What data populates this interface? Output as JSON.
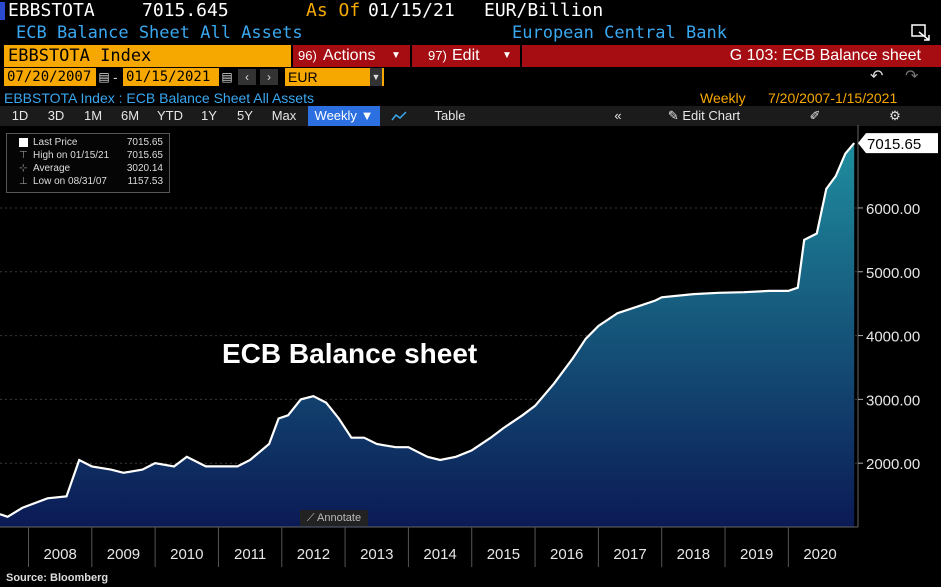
{
  "header": {
    "ticker": "EBBSTOTA",
    "price": "7015.645",
    "asof_label": "As Of",
    "asof_date": "01/15/21",
    "units": "EUR/Billion",
    "description": "ECB Balance Sheet All Assets",
    "source_name": "European Central Bank",
    "security": "EBBSTOTA Index",
    "actions_num": "96)",
    "actions_label": "Actions",
    "edit_num": "97)",
    "edit_label": "Edit",
    "graph_title": "G 103: ECB Balance sheet",
    "start_date": "07/20/2007",
    "end_date": "01/15/2021",
    "currency": "EUR",
    "subtitle": "EBBSTOTA Index : ECB Balance Sheet All Assets",
    "frequency_label": "Weekly",
    "range_label": "7/20/2007-1/15/2021"
  },
  "toolbar": {
    "periods": [
      "1D",
      "3D",
      "1M",
      "6M",
      "YTD",
      "1Y",
      "5Y",
      "Max"
    ],
    "frequency": "Weekly",
    "table_label": "Table",
    "edit_chart_label": "Edit Chart"
  },
  "legend": {
    "last_price_label": "Last Price",
    "last_price_value": "7015.65",
    "high_label": "High on 01/15/21",
    "high_value": "7015.65",
    "average_label": "Average",
    "average_value": "3020.14",
    "low_label": "Low on 08/31/07",
    "low_value": "1157.53"
  },
  "annotate_label": "Annotate",
  "source": "Source: Bloomberg",
  "colors": {
    "accent_orange": "#f7a800",
    "button_red": "#a50d12",
    "header_blue": "#3aa8f0",
    "area_top": "#1f8d9e",
    "area_bottom": "#0b1a55"
  },
  "chart_data": {
    "type": "area",
    "title": "ECB Balance sheet",
    "ylabel": "EUR/Billion",
    "ylim": [
      1000,
      7300
    ],
    "yticks": [
      "2000.00",
      "3000.00",
      "4000.00",
      "5000.00",
      "6000.00"
    ],
    "x_ticks": [
      "2008",
      "2009",
      "2010",
      "2011",
      "2012",
      "2013",
      "2014",
      "2015",
      "2016",
      "2017",
      "2018",
      "2019",
      "2020"
    ],
    "last_value_label": "7015.65",
    "series": [
      {
        "x": [
          2007.55,
          2007.67,
          2007.9,
          2008.3,
          2008.6,
          2008.8,
          2009.0,
          2009.3,
          2009.5,
          2009.8,
          2010.0,
          2010.3,
          2010.5,
          2010.8,
          2011.0,
          2011.3,
          2011.5,
          2011.8,
          2011.95,
          2012.1,
          2012.3,
          2012.5,
          2012.7,
          2012.9,
          2013.1,
          2013.3,
          2013.5,
          2013.8,
          2014.0,
          2014.3,
          2014.5,
          2014.75,
          2015.0,
          2015.3,
          2015.5,
          2015.8,
          2016.0,
          2016.3,
          2016.6,
          2016.8,
          2017.0,
          2017.3,
          2017.6,
          2017.9,
          2018.0,
          2018.5,
          2018.9,
          2019.3,
          2019.7,
          2020.0,
          2020.15,
          2020.25,
          2020.45,
          2020.6,
          2020.75,
          2020.9,
          2021.04
        ],
        "values": [
          1200,
          1160,
          1300,
          1450,
          1480,
          2050,
          1950,
          1900,
          1850,
          1900,
          2000,
          1950,
          2100,
          1950,
          1950,
          1950,
          2050,
          2300,
          2700,
          2750,
          3000,
          3050,
          2950,
          2700,
          2400,
          2400,
          2300,
          2250,
          2250,
          2100,
          2050,
          2100,
          2200,
          2400,
          2550,
          2750,
          2900,
          3250,
          3650,
          3950,
          4150,
          4350,
          4450,
          4550,
          4600,
          4650,
          4670,
          4680,
          4700,
          4700,
          4750,
          5500,
          5600,
          6300,
          6500,
          6850,
          7015.65
        ]
      }
    ]
  }
}
